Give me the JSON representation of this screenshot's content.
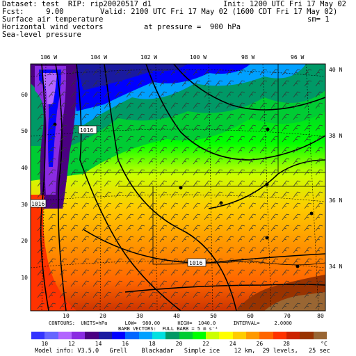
{
  "header": {
    "dataset": "Dataset: test  RIP: rip20020517 d1",
    "init": "Init: 1200 UTC Fri 17 May 02",
    "fcst": "Fcst:     9.00",
    "valid": "Valid: 2100 UTC Fri 17 May 02 (1600 CDT Fri 17 May 02)",
    "field1": "Surface air temperature",
    "sm": "sm= 1",
    "field2": "Horizontal wind vectors",
    "pressure": "at pressure =  900 hPa",
    "field3": "Sea-level pressure"
  },
  "map": {
    "lon_labels": [
      "106 W",
      "104 W",
      "102 W",
      "100 W",
      "98 W",
      "96 W"
    ],
    "lat_labels": [
      "40 N",
      "38 N",
      "36 N",
      "34 N"
    ],
    "x_ticks": [
      "10",
      "20",
      "30",
      "40",
      "50",
      "60",
      "70",
      "80"
    ],
    "y_ticks": [
      "10",
      "20",
      "30",
      "40",
      "50",
      "60"
    ],
    "isobar_labels": [
      "1016",
      "1016",
      "1016"
    ]
  },
  "footer": {
    "contours": "CONTOURS:  UNITS=hPa      LOW=  980.00      HIGH=  1040.0      INTERVAL=     2.0000",
    "barbs": "BARB VECTORS:  FULL BARB = 5 m s⁻¹",
    "model_info": "Model info: V3.5.0   Grell    Blackadar   Simple ice    12 km,  29 levels,   25 sec"
  },
  "colorbar": {
    "labels": [
      "10",
      "12",
      "14",
      "16",
      "18",
      "20",
      "22",
      "24",
      "26",
      "28"
    ],
    "unit": "°C",
    "colors": [
      "#3333ff",
      "#6666ff",
      "#b266ff",
      "#8a2be2",
      "#4b0082",
      "#1a1aa0",
      "#0000ff",
      "#0066ff",
      "#00a0ff",
      "#00e0e0",
      "#009966",
      "#00cc33",
      "#00ff00",
      "#ccff00",
      "#ffff00",
      "#ffcc00",
      "#ff9900",
      "#ff6600",
      "#ff3300",
      "#cc2200",
      "#993300",
      "#996633"
    ]
  }
}
